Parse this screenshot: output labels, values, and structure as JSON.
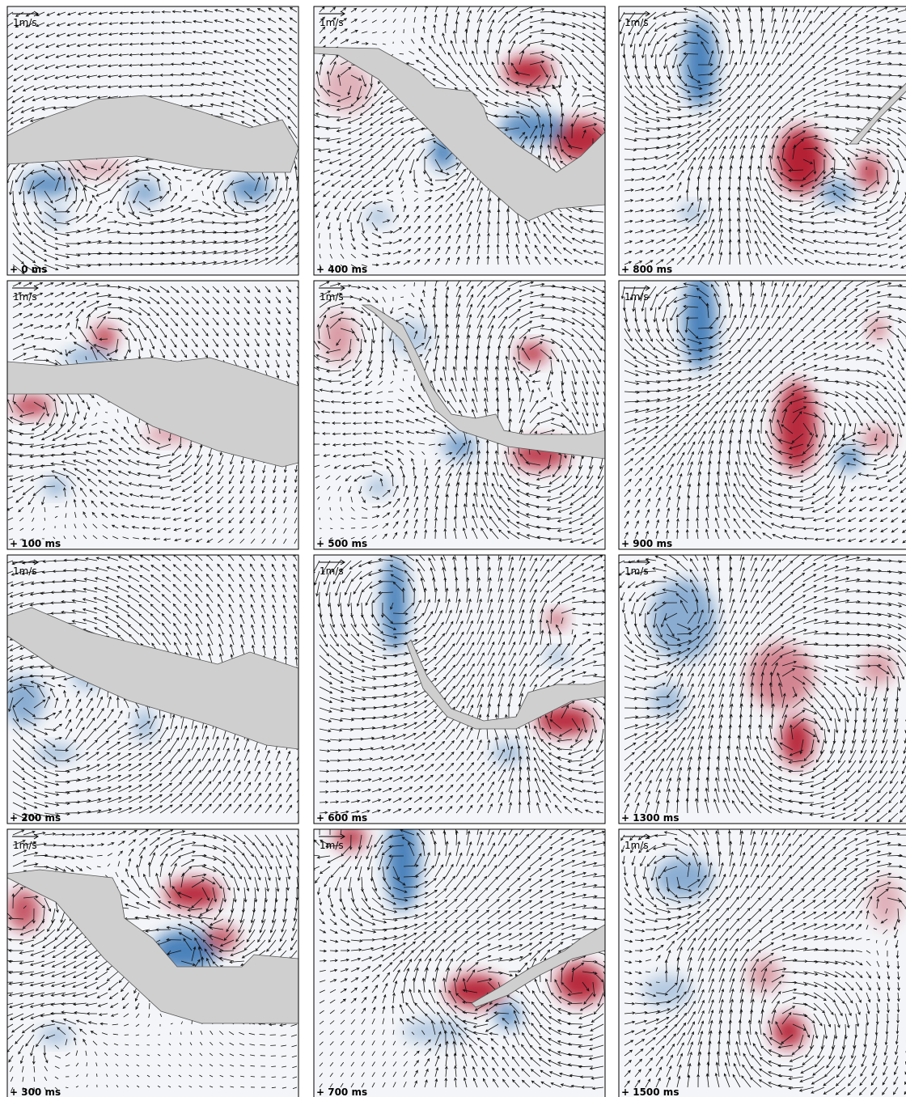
{
  "panels": [
    {
      "scale_label": "1m/s",
      "time": "+ 0 ms"
    },
    {
      "scale_label": "1m/s",
      "time": "+ 100 ms"
    },
    {
      "scale_label": "1m/s",
      "time": "+ 200 ms"
    },
    {
      "scale_label": "1m/s",
      "time": "+ 300 ms"
    },
    {
      "scale_label": "1m/s",
      "time": "+ 400 ms"
    },
    {
      "scale_label": "1m/s",
      "time": "+ 500 ms"
    },
    {
      "scale_label": "1m/s",
      "time": "+ 600 ms"
    },
    {
      "scale_label": "1m/s",
      "time": "+ 700 ms"
    },
    {
      "scale_label": "1m/s",
      "time": "+ 800 ms"
    },
    {
      "scale_label": "1m/s",
      "time": "+ 900 ms"
    },
    {
      "scale_label": "1m/s",
      "time": "+ 1300 ms"
    },
    {
      "scale_label": "1m/s",
      "time": "+ 1500 ms"
    }
  ]
}
